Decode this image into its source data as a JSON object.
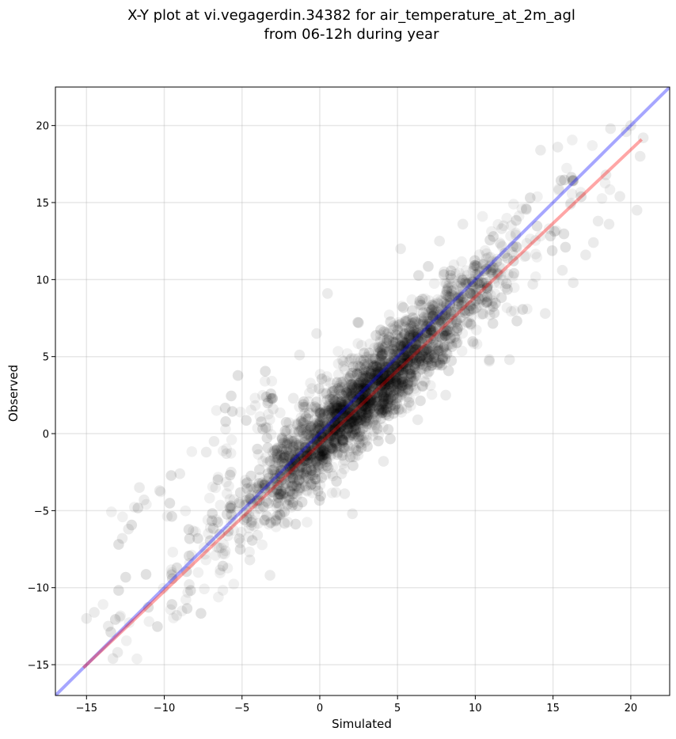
{
  "chart_data": {
    "type": "scatter",
    "title_line1": "X-Y plot at vi.vegagerdin.34382 for air_temperature_at_2m_agl",
    "title_line2": "from 06-12h during year",
    "xlabel": "Simulated",
    "ylabel": "Observed",
    "xlim": [
      -17,
      22.5
    ],
    "ylim": [
      -17,
      22.5
    ],
    "xticks": [
      -15,
      -10,
      -5,
      0,
      5,
      10,
      15,
      20
    ],
    "yticks": [
      -15,
      -10,
      -5,
      0,
      5,
      10,
      15,
      20
    ],
    "xtick_labels": [
      "−15",
      "−10",
      "−5",
      "0",
      "5",
      "10",
      "15",
      "20"
    ],
    "ytick_labels": [
      "−15",
      "−10",
      "−5",
      "0",
      "5",
      "10",
      "15",
      "20"
    ],
    "grid": true,
    "point_color": "#000000",
    "point_alpha": 0.06,
    "cloud": {
      "x_range": [
        -15,
        21
      ],
      "relation": "observed ≈ simulated - 0.4 · (spread ≈ 1.5)",
      "points": [
        [
          -15,
          -12
        ],
        [
          -14.5,
          -11.6
        ],
        [
          -13.6,
          -12.5
        ],
        [
          -13.3,
          -14.6
        ],
        [
          -13,
          -14.2
        ],
        [
          -12.7,
          -6.8
        ],
        [
          -12.3,
          -6.2
        ],
        [
          -11.6,
          -3.5
        ],
        [
          -11.3,
          -4.3
        ],
        [
          -10.3,
          -3.7
        ],
        [
          -7.3,
          -1.2
        ],
        [
          -6,
          -1.3
        ],
        [
          -5.7,
          -2.5
        ],
        [
          -0.2,
          6.5
        ],
        [
          -1.3,
          5.1
        ],
        [
          1.6,
          -3.9
        ],
        [
          2.5,
          7.2
        ],
        [
          8,
          10.5
        ],
        [
          12.6,
          12.9
        ],
        [
          10.9,
          4.7
        ],
        [
          13.7,
          9.7
        ],
        [
          14.2,
          18.4
        ],
        [
          15.3,
          18.6
        ],
        [
          16.3,
          16.4
        ],
        [
          15.6,
          10.6
        ],
        [
          16.3,
          9.8
        ],
        [
          17.1,
          11.6
        ],
        [
          17.9,
          13.8
        ],
        [
          18.4,
          16.8
        ],
        [
          18.7,
          19.8
        ],
        [
          19.7,
          19.6
        ],
        [
          20,
          20
        ],
        [
          20.4,
          14.5
        ],
        [
          20.6,
          18
        ],
        [
          20.8,
          19.2
        ],
        [
          19.3,
          15.4
        ],
        [
          18.6,
          13.6
        ],
        [
          17.6,
          12.4
        ],
        [
          11.7,
          13.3
        ],
        [
          9.2,
          13.6
        ],
        [
          7.7,
          12.5
        ],
        [
          5.2,
          12
        ],
        [
          -1.7,
          2.3
        ],
        [
          -3,
          1.6
        ],
        [
          0.5,
          9.1
        ],
        [
          -6.8,
          -0.5
        ],
        [
          -9,
          -2.6
        ],
        [
          -8.4,
          -9.8
        ],
        [
          -9.2,
          -11.8
        ],
        [
          -4,
          -6.6
        ],
        [
          -4.5,
          -8.2
        ],
        [
          -3.2,
          -9.2
        ],
        [
          1.4,
          -2.6
        ],
        [
          2.1,
          -5.2
        ],
        [
          4.1,
          -1.8
        ],
        [
          6.3,
          0.9
        ],
        [
          8.1,
          2.5
        ],
        [
          10.9,
          4.8
        ],
        [
          12.2,
          4.8
        ],
        [
          14.5,
          7.8
        ]
      ]
    },
    "series": [
      {
        "name": "",
        "kind": "line",
        "color": "#0000ff",
        "x": [
          -17,
          22.5
        ],
        "y": [
          -17,
          22.5
        ]
      },
      {
        "name": "",
        "kind": "line",
        "color": "#ff0000",
        "x": [
          -15.2,
          20.7
        ],
        "y": [
          -15.2,
          19.1
        ]
      }
    ]
  }
}
